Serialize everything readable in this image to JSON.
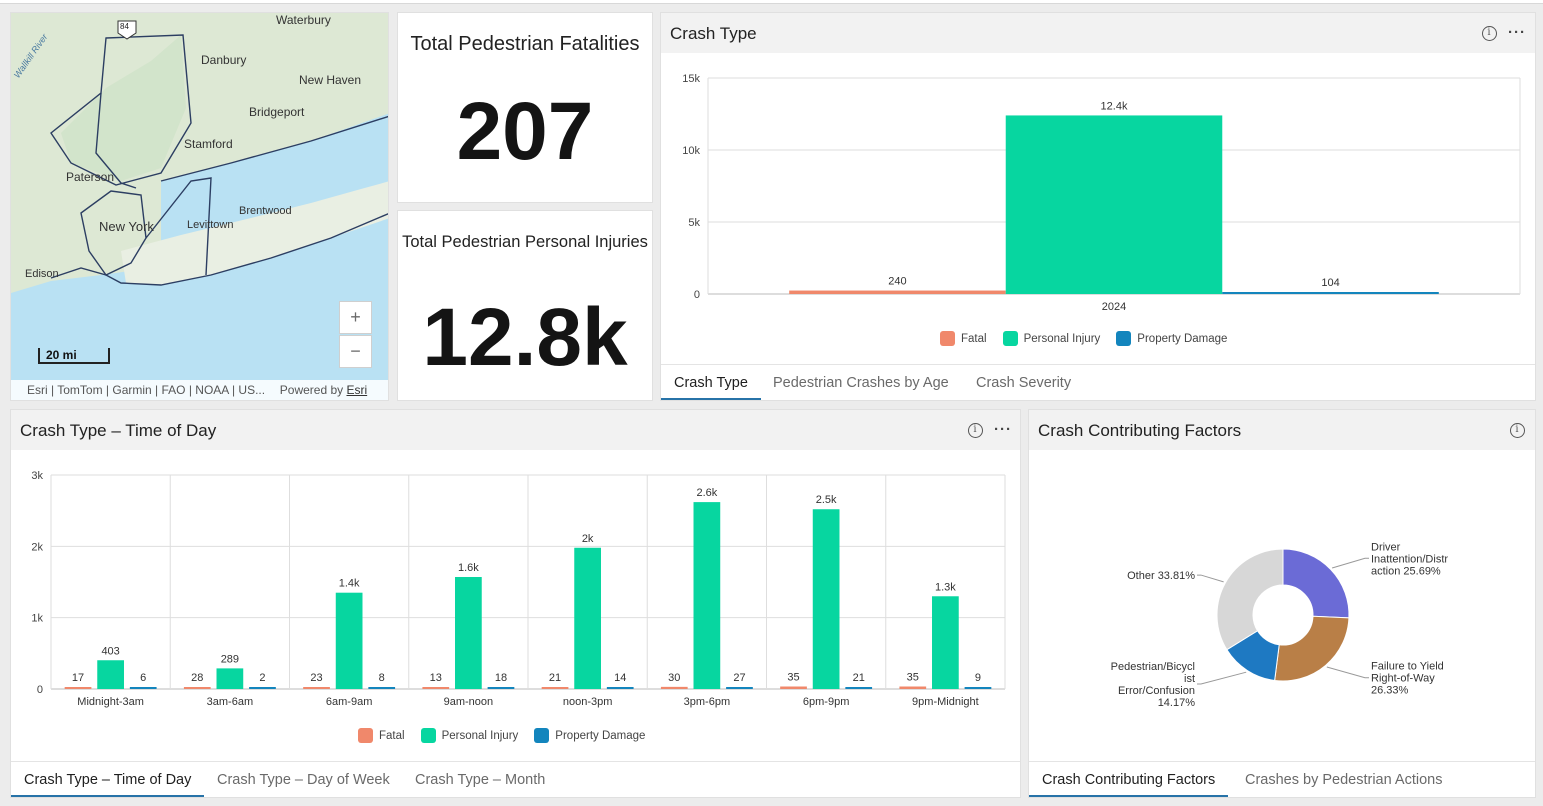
{
  "map": {
    "places": {
      "waterbury": "Waterbury",
      "danbury": "Danbury",
      "new_haven": "New Haven",
      "bridgeport": "Bridgeport",
      "stamford": "Stamford",
      "paterson": "Paterson",
      "brentwood": "Brentwood",
      "levittown": "Levittown",
      "new_york": "New York",
      "edison": "Edison",
      "wallkill_river": "Wallkill River",
      "highway_shield": "84"
    },
    "zoom_in_label": "+",
    "zoom_out_label": "−",
    "scale_label": "20 mi",
    "attribution": "Esri | TomTom | Garmin | FAO | NOAA | US...",
    "powered_by": "Powered by",
    "powered_by_link": "Esri"
  },
  "fatalities": {
    "title": "Total Pedestrian Fatalities",
    "value": "207"
  },
  "injuries": {
    "title": "Total Pedestrian Personal Injuries",
    "value": "12.8k"
  },
  "crash_type_panel": {
    "title": "Crash Type",
    "tabs": [
      "Crash Type",
      "Pedestrian Crashes by Age",
      "Crash Severity"
    ]
  },
  "time_of_day_panel": {
    "title": "Crash Type – Time of Day",
    "tabs": [
      "Crash Type – Time of Day",
      "Crash Type – Day of Week",
      "Crash Type – Month"
    ]
  },
  "factors_panel": {
    "title": "Crash Contributing Factors",
    "tabs": [
      "Crash Contributing Factors",
      "Crashes by Pedestrian Actions"
    ]
  },
  "legend": [
    "Fatal",
    "Personal Injury",
    "Property Damage"
  ],
  "colors": {
    "fatal": "#f0886b",
    "injury": "#07d6a0",
    "property": "#1385bd",
    "accent": "#2773a8"
  },
  "icons": {
    "info": "info-icon",
    "more": "more-options-icon"
  },
  "chart_data": [
    {
      "id": "crash_type",
      "type": "bar",
      "categories": [
        "2024"
      ],
      "series": [
        {
          "name": "Fatal",
          "values": [
            240
          ],
          "labels": [
            "240"
          ]
        },
        {
          "name": "Personal Injury",
          "values": [
            12400
          ],
          "labels": [
            "12.4k"
          ]
        },
        {
          "name": "Property Damage",
          "values": [
            104
          ],
          "labels": [
            "104"
          ]
        }
      ],
      "ylim": [
        0,
        15000
      ],
      "yticks": [
        0,
        5000,
        10000,
        15000
      ],
      "ytick_labels": [
        "0",
        "5k",
        "10k",
        "15k"
      ],
      "grid": true,
      "legend": "bottom"
    },
    {
      "id": "time_of_day",
      "type": "bar",
      "categories": [
        "Midnight-3am",
        "3am-6am",
        "6am-9am",
        "9am-noon",
        "noon-3pm",
        "3pm-6pm",
        "6pm-9pm",
        "9pm-Midnight"
      ],
      "series": [
        {
          "name": "Fatal",
          "values": [
            17,
            28,
            23,
            13,
            21,
            30,
            35,
            35
          ],
          "labels": [
            "17",
            "28",
            "23",
            "13",
            "21",
            "30",
            "35",
            "35"
          ]
        },
        {
          "name": "Personal Injury",
          "values": [
            403,
            289,
            1350,
            1570,
            1980,
            2620,
            2520,
            1300
          ],
          "labels": [
            "403",
            "289",
            "1.4k",
            "1.6k",
            "2k",
            "2.6k",
            "2.5k",
            "1.3k"
          ]
        },
        {
          "name": "Property Damage",
          "values": [
            6,
            2,
            8,
            18,
            14,
            27,
            21,
            9
          ],
          "labels": [
            "6",
            "2",
            "8",
            "18",
            "14",
            "27",
            "21",
            "9"
          ]
        }
      ],
      "ylim": [
        0,
        3000
      ],
      "yticks": [
        0,
        1000,
        2000,
        3000
      ],
      "ytick_labels": [
        "0",
        "1k",
        "2k",
        "3k"
      ],
      "grid": true,
      "legend": "bottom"
    },
    {
      "id": "contributing_factors",
      "type": "pie",
      "donut": true,
      "slices": [
        {
          "label": "Driver Inattention/Distraction",
          "value": 25.69,
          "display": [
            "Driver",
            "Inattention/Distr",
            "action 25.69%"
          ],
          "color": "#6b6bd6"
        },
        {
          "label": "Failure to Yield Right-of-Way",
          "value": 26.33,
          "display": [
            "Failure to Yield",
            "Right-of-Way",
            "26.33%"
          ],
          "color": "#b97f47"
        },
        {
          "label": "Pedestrian/Bicyclist Error/Confusion",
          "value": 14.17,
          "display": [
            "Pedestrian/Bicycl",
            "ist",
            "Error/Confusion",
            "14.17%"
          ],
          "color": "#1e79c2"
        },
        {
          "label": "Other",
          "value": 33.81,
          "display": [
            "Other 33.81%"
          ],
          "color": "#d7d7d7"
        }
      ]
    }
  ]
}
